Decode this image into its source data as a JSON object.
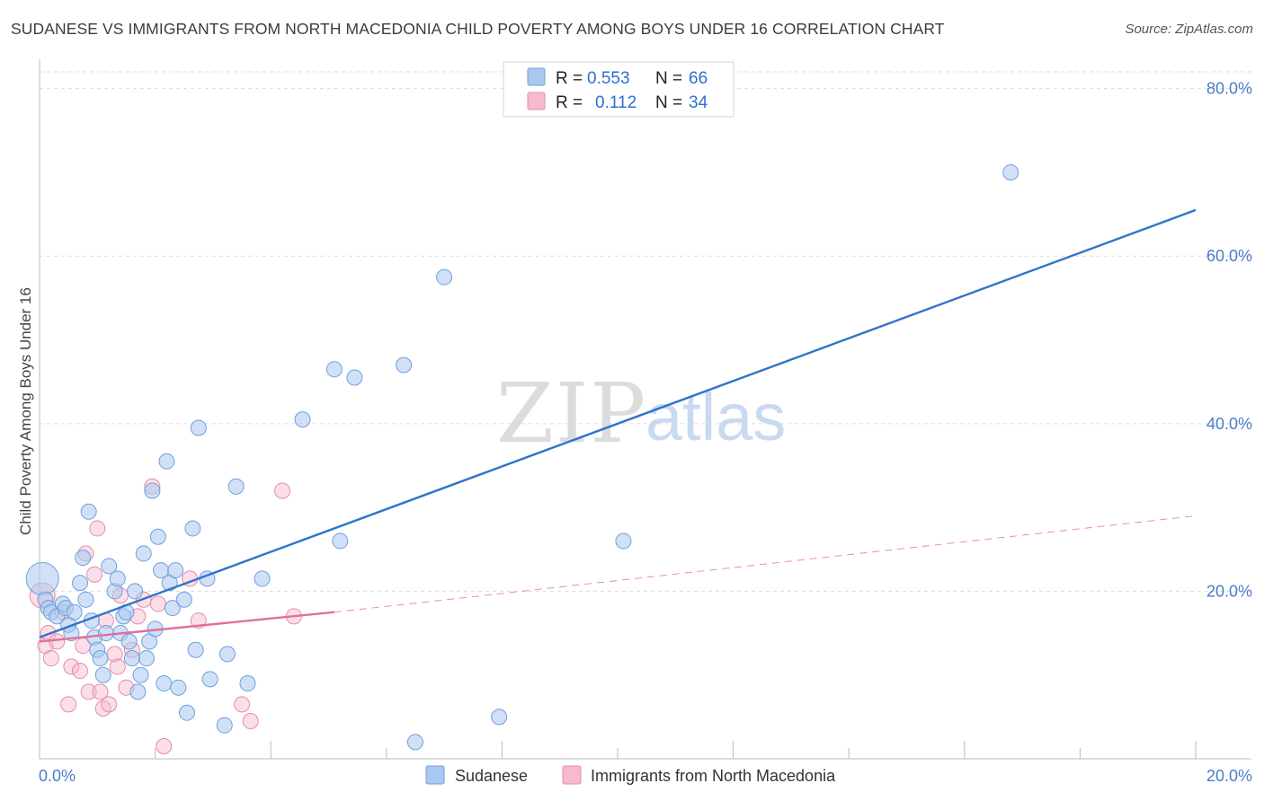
{
  "title": "SUDANESE VS IMMIGRANTS FROM NORTH MACEDONIA CHILD POVERTY AMONG BOYS UNDER 16 CORRELATION CHART",
  "source": "Source: ZipAtlas.com",
  "watermark": {
    "zip": "ZIP",
    "atlas": "atlas"
  },
  "legend": {
    "rows": [
      {
        "r_label": "R =",
        "r_value": "0.553",
        "n_label": "N =",
        "n_value": "66",
        "color": "#a9c8f0"
      },
      {
        "r_label": "R =",
        "r_value": "0.112",
        "n_label": "N =",
        "n_value": "34",
        "color": "#f6b9cd"
      }
    ]
  },
  "colors": {
    "blue_fill": "#a9c8f0",
    "blue_stroke": "#6f9fdc",
    "blue_line": "#2f73cc",
    "pink_fill": "#f6b9cd",
    "pink_stroke": "#e88aaa",
    "pink_line": "#e0709a",
    "grid": "#dcdcdc",
    "tick_text": "#4a7cc9"
  },
  "chart_data": {
    "type": "scatter",
    "title": "SUDANESE VS IMMIGRANTS FROM NORTH MACEDONIA CHILD POVERTY AMONG BOYS UNDER 16 CORRELATION CHART",
    "xlabel": "",
    "ylabel": "Child Poverty Among Boys Under 16",
    "xlim": [
      0,
      20
    ],
    "ylim": [
      0,
      82
    ],
    "x_ticks": [
      {
        "value": 0,
        "label": "0.0%"
      },
      {
        "value": 20,
        "label": "20.0%"
      }
    ],
    "y_ticks": [
      {
        "value": 20,
        "label": "20.0%"
      },
      {
        "value": 40,
        "label": "40.0%"
      },
      {
        "value": 60,
        "label": "60.0%"
      },
      {
        "value": 80,
        "label": "80.0%"
      }
    ],
    "legend_position": "top-center",
    "series": [
      {
        "name": "Sudanese",
        "color": "#a9c8f0",
        "points": [
          [
            0.05,
            21.5
          ],
          [
            0.1,
            19
          ],
          [
            0.15,
            18
          ],
          [
            0.2,
            17.5
          ],
          [
            0.3,
            17
          ],
          [
            0.4,
            18.5
          ],
          [
            0.45,
            18
          ],
          [
            0.5,
            16
          ],
          [
            0.55,
            15
          ],
          [
            0.6,
            17.5
          ],
          [
            0.7,
            21
          ],
          [
            0.75,
            24
          ],
          [
            0.8,
            19
          ],
          [
            0.85,
            29.5
          ],
          [
            0.9,
            16.5
          ],
          [
            0.95,
            14.5
          ],
          [
            1.0,
            13
          ],
          [
            1.05,
            12
          ],
          [
            1.1,
            10
          ],
          [
            1.15,
            15
          ],
          [
            1.2,
            23
          ],
          [
            1.3,
            20
          ],
          [
            1.35,
            21.5
          ],
          [
            1.4,
            15
          ],
          [
            1.45,
            17
          ],
          [
            1.5,
            17.5
          ],
          [
            1.55,
            14
          ],
          [
            1.6,
            12
          ],
          [
            1.65,
            20
          ],
          [
            1.7,
            8
          ],
          [
            1.75,
            10
          ],
          [
            1.8,
            24.5
          ],
          [
            1.85,
            12
          ],
          [
            1.9,
            14
          ],
          [
            1.95,
            32
          ],
          [
            2.0,
            15.5
          ],
          [
            2.05,
            26.5
          ],
          [
            2.1,
            22.5
          ],
          [
            2.15,
            9
          ],
          [
            2.2,
            35.5
          ],
          [
            2.25,
            21
          ],
          [
            2.3,
            18
          ],
          [
            2.35,
            22.5
          ],
          [
            2.4,
            8.5
          ],
          [
            2.5,
            19
          ],
          [
            2.55,
            5.5
          ],
          [
            2.65,
            27.5
          ],
          [
            2.7,
            13
          ],
          [
            2.75,
            39.5
          ],
          [
            2.9,
            21.5
          ],
          [
            2.95,
            9.5
          ],
          [
            3.2,
            4
          ],
          [
            3.25,
            12.5
          ],
          [
            3.4,
            32.5
          ],
          [
            3.6,
            9
          ],
          [
            3.85,
            21.5
          ],
          [
            4.55,
            40.5
          ],
          [
            5.1,
            46.5
          ],
          [
            5.2,
            26
          ],
          [
            5.45,
            45.5
          ],
          [
            6.3,
            47
          ],
          [
            6.5,
            2
          ],
          [
            7.0,
            57.5
          ],
          [
            7.95,
            5
          ],
          [
            10.1,
            26
          ],
          [
            16.8,
            70
          ]
        ]
      },
      {
        "name": "Immigrants from North Macedonia",
        "color": "#f6b9cd",
        "points": [
          [
            0.05,
            19.5
          ],
          [
            0.1,
            13.5
          ],
          [
            0.15,
            15
          ],
          [
            0.2,
            12
          ],
          [
            0.3,
            14
          ],
          [
            0.4,
            17.5
          ],
          [
            0.5,
            6.5
          ],
          [
            0.55,
            11
          ],
          [
            0.7,
            10.5
          ],
          [
            0.75,
            13.5
          ],
          [
            0.8,
            24.5
          ],
          [
            0.85,
            8
          ],
          [
            0.95,
            22
          ],
          [
            1.0,
            27.5
          ],
          [
            1.05,
            8
          ],
          [
            1.1,
            6
          ],
          [
            1.15,
            16.5
          ],
          [
            1.2,
            6.5
          ],
          [
            1.3,
            12.5
          ],
          [
            1.35,
            11
          ],
          [
            1.4,
            19.5
          ],
          [
            1.5,
            8.5
          ],
          [
            1.6,
            13
          ],
          [
            1.7,
            17
          ],
          [
            1.8,
            19
          ],
          [
            1.95,
            32.5
          ],
          [
            2.05,
            18.5
          ],
          [
            2.15,
            1.5
          ],
          [
            2.6,
            21.5
          ],
          [
            2.75,
            16.5
          ],
          [
            3.5,
            6.5
          ],
          [
            3.65,
            4.5
          ],
          [
            4.2,
            32
          ],
          [
            4.4,
            17
          ]
        ]
      }
    ],
    "trendlines": [
      {
        "series": "Sudanese",
        "x": [
          0,
          20
        ],
        "y": [
          14.5,
          65.5
        ],
        "style": "solid"
      },
      {
        "series": "Immigrants from North Macedonia",
        "x": [
          0,
          5.1
        ],
        "y": [
          14,
          17.5
        ],
        "style": "solid"
      },
      {
        "series": "Immigrants from North Macedonia",
        "x": [
          5.1,
          20
        ],
        "y": [
          17.5,
          29
        ],
        "style": "dashed"
      }
    ]
  }
}
